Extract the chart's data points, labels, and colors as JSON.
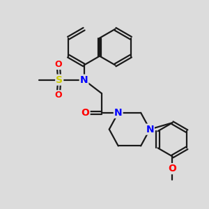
{
  "bg_color": "#dcdcdc",
  "bond_color": "#1a1a1a",
  "bond_width": 1.6,
  "N_color": "#0000ff",
  "O_color": "#ff0000",
  "S_color": "#cccc00",
  "font_size_atom": 10,
  "fig_size": [
    3.0,
    3.0
  ],
  "dpi": 100,
  "xlim": [
    0,
    10
  ],
  "ylim": [
    0,
    10
  ]
}
